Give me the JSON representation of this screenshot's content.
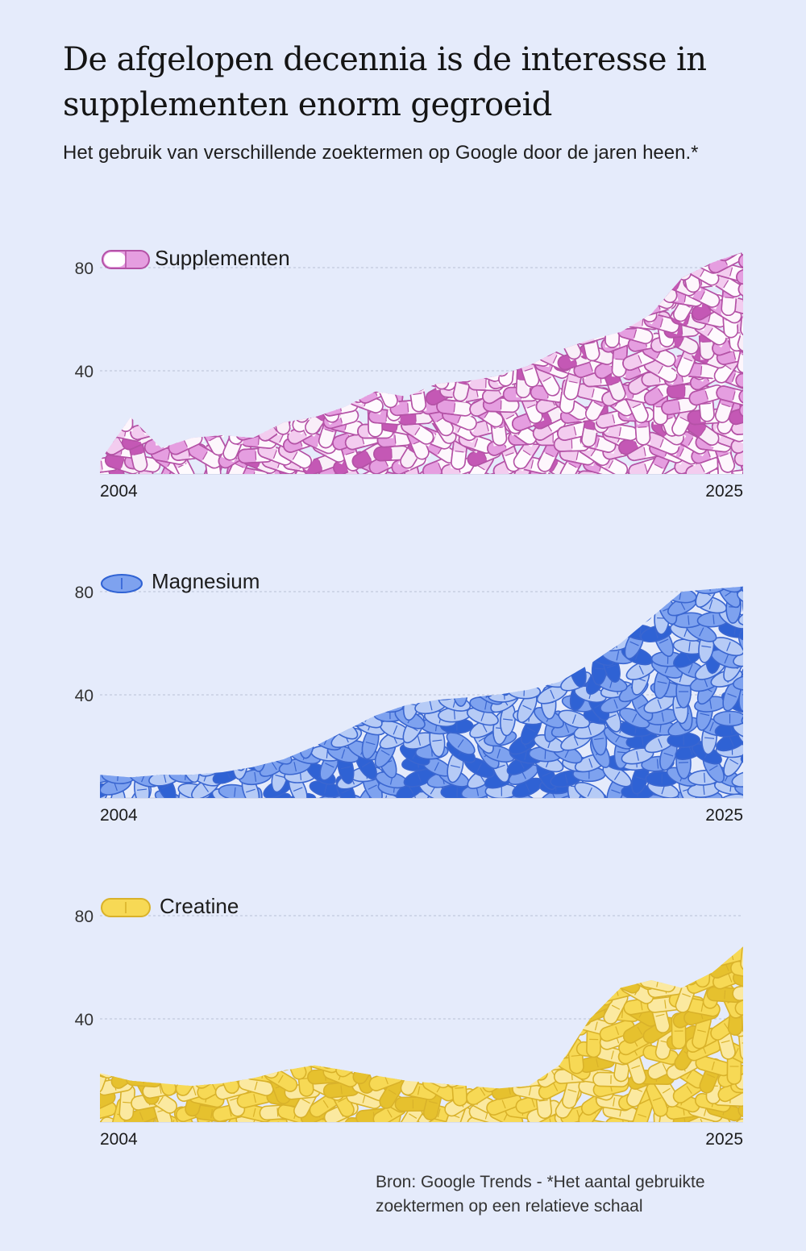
{
  "header": {
    "title": "De afgelopen decennia is de interesse in supplementen enorm gegroeid",
    "subtitle": "Het gebruik van verschillende zoektermen op Google door de jaren heen.*"
  },
  "footer": {
    "source": "Bron: Google Trends - *Het aantal gebruikte zoektermen op een relatieve schaal"
  },
  "chart_data": [
    {
      "type": "area",
      "series_label": "Supplementen",
      "legend_icon": "capsule",
      "color_dark": "#c458b5",
      "color_mid": "#e59ee0",
      "color_light": "#f3ccef",
      "x": [
        2004,
        2005,
        2006,
        2007,
        2008,
        2009,
        2010,
        2011,
        2012,
        2013,
        2014,
        2015,
        2016,
        2017,
        2018,
        2019,
        2020,
        2021,
        2022,
        2023,
        2024,
        2025
      ],
      "values": [
        5,
        22,
        10,
        14,
        15,
        14,
        20,
        22,
        26,
        32,
        30,
        35,
        36,
        38,
        42,
        48,
        52,
        55,
        62,
        76,
        82,
        86
      ],
      "x_tick_labels": [
        "2004",
        "2025"
      ],
      "y_ticks": [
        40,
        80
      ],
      "ylim": [
        0,
        90
      ],
      "grid": true
    },
    {
      "type": "area",
      "series_label": "Magnesium",
      "legend_icon": "oval-tablet",
      "color_dark": "#2f62d4",
      "color_mid": "#7ea2ef",
      "color_light": "#b6cbf6",
      "x": [
        2004,
        2005,
        2006,
        2007,
        2008,
        2009,
        2010,
        2011,
        2012,
        2013,
        2014,
        2015,
        2016,
        2017,
        2018,
        2019,
        2020,
        2021,
        2022,
        2023,
        2024,
        2025
      ],
      "values": [
        9,
        8,
        9,
        9,
        10,
        12,
        15,
        20,
        26,
        32,
        36,
        38,
        39,
        40,
        42,
        45,
        52,
        60,
        70,
        80,
        81,
        82
      ],
      "x_tick_labels": [
        "2004",
        "2025"
      ],
      "y_ticks": [
        40,
        80
      ],
      "ylim": [
        0,
        90
      ],
      "grid": true
    },
    {
      "type": "area",
      "series_label": "Creatine",
      "legend_icon": "capsule-tablet",
      "color_dark": "#e6c12e",
      "color_mid": "#f7d955",
      "color_light": "#fbe9a0",
      "x": [
        2004,
        2005,
        2006,
        2007,
        2008,
        2009,
        2010,
        2011,
        2012,
        2013,
        2014,
        2015,
        2016,
        2017,
        2018,
        2019,
        2020,
        2021,
        2022,
        2023,
        2024,
        2025
      ],
      "values": [
        19,
        16,
        15,
        14,
        15,
        17,
        20,
        22,
        20,
        18,
        16,
        15,
        14,
        13,
        14,
        22,
        40,
        52,
        55,
        52,
        58,
        68
      ],
      "x_tick_labels": [
        "2004",
        "2025"
      ],
      "y_ticks": [
        40,
        80
      ],
      "ylim": [
        0,
        90
      ],
      "grid": true
    }
  ]
}
